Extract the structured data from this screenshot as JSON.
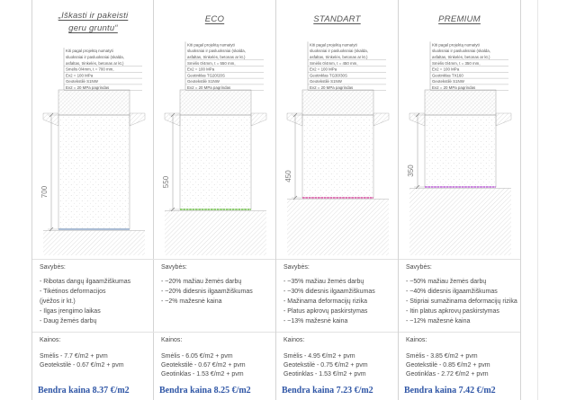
{
  "colors": {
    "text": "#4a4a4a",
    "total": "#2f56a6"
  },
  "columns": [
    {
      "title_lines": [
        "„Iškasti ir pakeisti",
        "geru gruntu“"
      ],
      "layers": [
        "Kiti pagal projektą numatyti",
        "sluoksniai ir pasluoksniai (skalda,",
        "asfaltas, trinkelės, betonas ar kt.)",
        "Smėlis 0/4mm, t = 700 mm,",
        "Ev2 = 100 MPa",
        "Geotekstilė S1NW",
        "Ev2 = 20 MPa pagrindas"
      ],
      "dimension_mm": "700",
      "layer_color": "#8da6c6",
      "properties_label": "Savybės:",
      "properties": [
        "- Ribotas dangų ilgaamžiškumas",
        "- Tikėtinos deformacijos",
        "(įvėžos ir kt.)",
        "- Ilgas įrengimo laikas",
        "- Daug žemės darbų"
      ],
      "prices_label": "Kainos:",
      "prices": [
        "Smėlis - 7.7 €/m2 + pvm",
        "Geotekstilė - 0.67 €/m2 + pvm"
      ],
      "total": "Bendra kaina 8.37 €/m2"
    },
    {
      "title_lines": [
        "ECO"
      ],
      "layers": [
        "Kiti pagal projektą numatyti",
        "sluoksniai ir pasluoksniai (skalda,",
        "asfaltas, trinkelės, betonas ar kt.)",
        "Smėlis 0/4mm, t = 550 mm,",
        "Ev2 = 100 MPa",
        "Geotinklas TG20/20S",
        "Geotekstilė S1NW",
        "Ev2 = 20 MPa pagrindas"
      ],
      "dimension_mm": "550",
      "layer_color": "#6cbf45",
      "properties_label": "Savybės:",
      "properties": [
        "- ~20% mažiau žemės darbų",
        "- ~20% didesnis ilgaamžiškumas",
        "- ~2% mažesnė kaina"
      ],
      "prices_label": "Kainos:",
      "prices": [
        "Smėlis - 6.05 €/m2 + pvm",
        "Geotekstilė - 0.67 €/m2 + pvm",
        "Geotinklas - 1.53 €/m2 + pvm"
      ],
      "total": "Bendra kaina 8.25 €/m2"
    },
    {
      "title_lines": [
        "STANDART"
      ],
      "layers": [
        "Kiti pagal projektą numatyti",
        "sluoksniai ir pasluoksniai (skalda,",
        "asfaltas, trinkelės, betonas ar kt.)",
        "Smėlis 0/4mm, t = 450 mm,",
        "Ev2 = 100 MPa",
        "Geotinklas TG30/30S",
        "Geotekstilė S1NW",
        "Ev2 = 20 MPa pagrindas"
      ],
      "dimension_mm": "450",
      "layer_color": "#d64b9e",
      "properties_label": "Savybės:",
      "properties": [
        "- ~35% mažiau žemės darbų",
        "- ~30% didesnis ilgaamžiškumas",
        "- Mažinama deformacijų rizika",
        "- Platus apkrovų paskirstymas",
        "- ~13% mažesnė kaina"
      ],
      "prices_label": "Kainos:",
      "prices": [
        "Smėlis - 4.95 €/m2 + pvm",
        "Geotekstilė - 0.75 €/m2 + pvm",
        "Geotinklas - 1.53 €/m2 + pvm"
      ],
      "total": "Bendra kaina 7.23 €/m2"
    },
    {
      "title_lines": [
        "PREMIUM"
      ],
      "layers": [
        "Kiti pagal projektą numatyti",
        "sluoksniai ir pasluoksniai (skalda,",
        "asfaltas, trinkelės, betonas ar kt.)",
        "Smėlis 0/4mm, t = 350 mm,",
        "Ev2 = 100 MPa",
        "Geotinklas TX160",
        "Geotekstilė S1NW",
        "Ev2 = 20 MPa pagrindas"
      ],
      "dimension_mm": "350",
      "layer_color": "#bb5bd6",
      "properties_label": "Savybės:",
      "properties": [
        "- ~50% mažiau žemės darbų",
        "- ~40% didesnis ilgaamžiškumas",
        "- Stipriai sumažinama deformacijų rizika",
        "- Itin platus apkrovų paskirstymas",
        "- ~12% mažesnė kaina"
      ],
      "prices_label": "Kainos:",
      "prices": [
        "Smėlis - 3.85 €/m2 + pvm",
        "Geotekstilė - 0.85 €/m2 + pvm",
        "Geotinklas - 2.72 €/m2 + pvm"
      ],
      "total": "Bendra kaina 7.42 €/m2"
    }
  ]
}
